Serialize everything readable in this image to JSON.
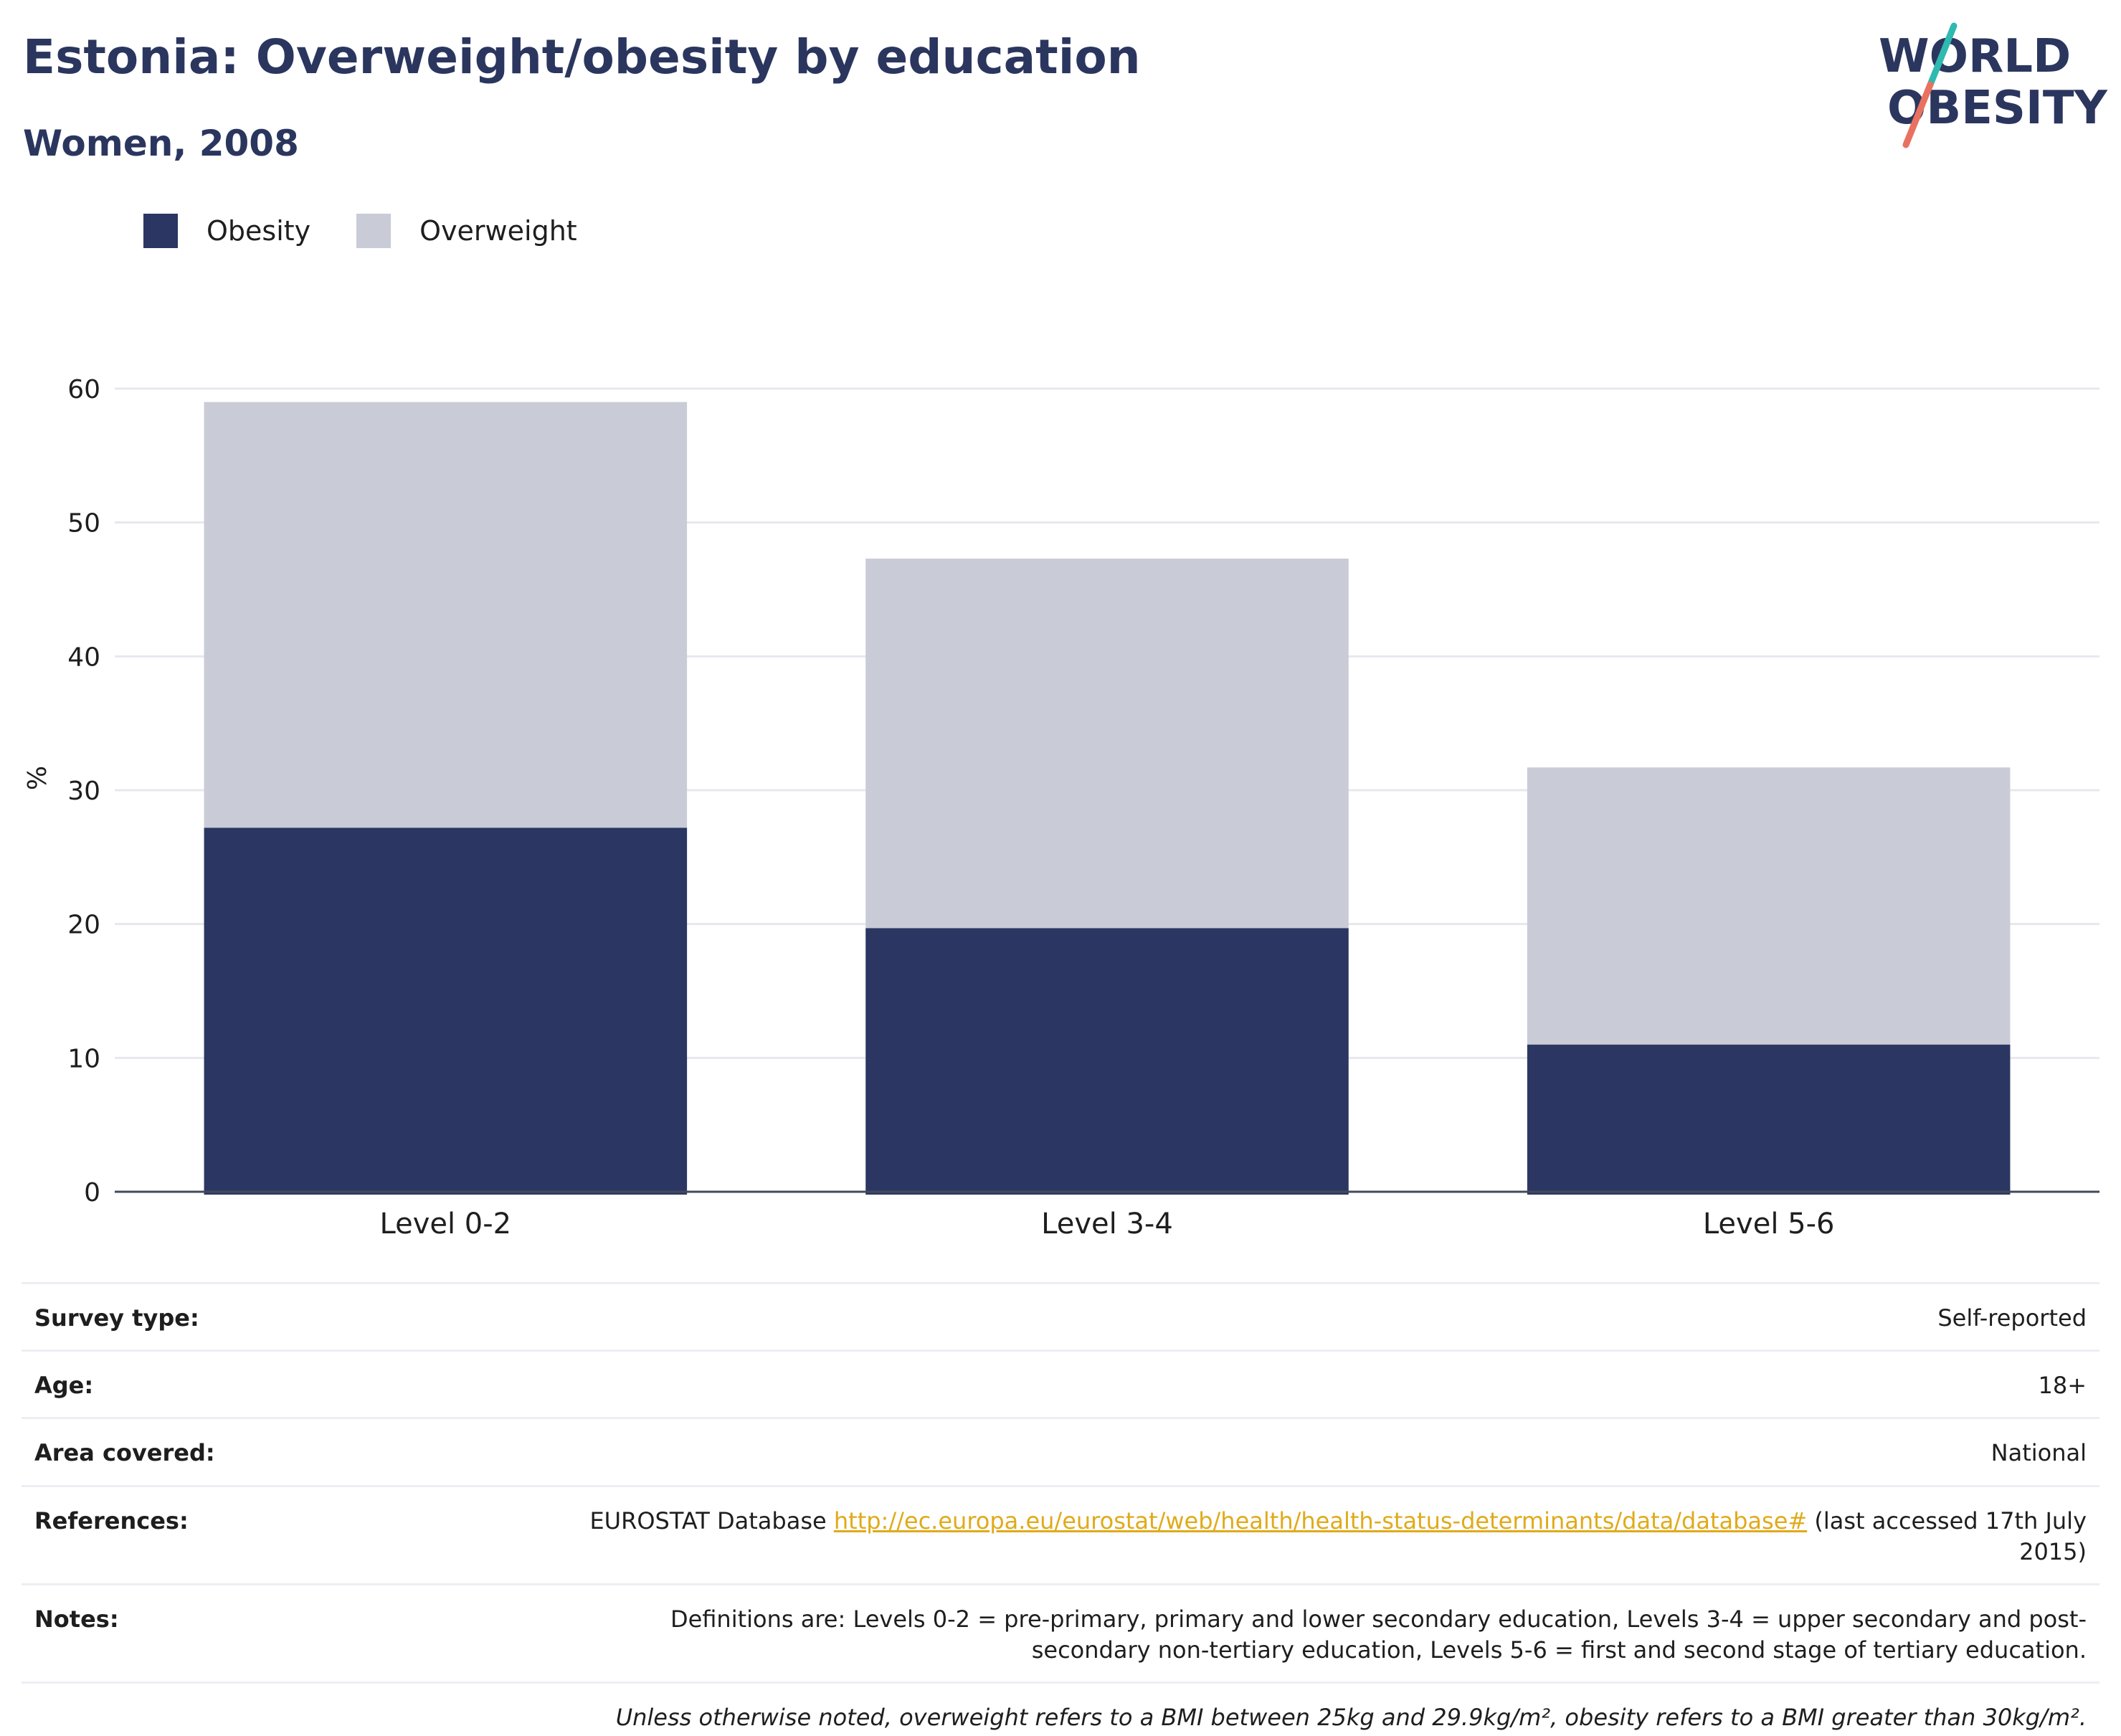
{
  "header": {
    "title": "Estonia: Overweight/obesity by education",
    "subtitle": "Women, 2008"
  },
  "logo": {
    "line1": "WORLD",
    "line2": "OBESITY"
  },
  "colors": {
    "obesity": "#2b3762",
    "overweight": "#c9cbd7",
    "accent_teal": "#2fb9b0",
    "accent_coral": "#e8725f",
    "link": "#e0aa1a"
  },
  "chart_data": {
    "type": "bar",
    "stacked": true,
    "categories": [
      "Level 0-2",
      "Level 3-4",
      "Level 5-6"
    ],
    "series": [
      {
        "name": "Obesity",
        "values": [
          27.2,
          19.7,
          11.0
        ]
      },
      {
        "name": "Overweight",
        "values": [
          31.8,
          27.6,
          20.7
        ]
      }
    ],
    "totals": [
      59.0,
      47.3,
      31.7
    ],
    "title": "Estonia: Overweight/obesity by education",
    "subtitle": "Women, 2008",
    "xlabel": "",
    "ylabel": "%",
    "ylim": [
      0,
      60
    ],
    "yticks": [
      0,
      10,
      20,
      30,
      40,
      50,
      60
    ],
    "grid": true,
    "legend": "top-left"
  },
  "meta": {
    "rows": [
      {
        "label": "Survey type:",
        "value": "Self-reported"
      },
      {
        "label": "Age:",
        "value": "18+"
      },
      {
        "label": "Area covered:",
        "value": "National"
      },
      {
        "label": "References:",
        "value_prefix": "EUROSTAT Database ",
        "link": "http://ec.europa.eu/eurostat/web/health/health-status-determinants/data/database#",
        "value_suffix": " (last accessed 17th July 2015)"
      },
      {
        "label": "Notes:",
        "value": "Definitions are: Levels 0-2 = pre-primary, primary and lower secondary education, Levels 3-4 = upper secondary and post-secondary non-tertiary education, Levels 5-6 = first and second stage of tertiary education."
      }
    ],
    "footnote": "Unless otherwise noted, overweight refers to a BMI between 25kg and 29.9kg/m², obesity refers to a BMI greater than 30kg/m²."
  }
}
